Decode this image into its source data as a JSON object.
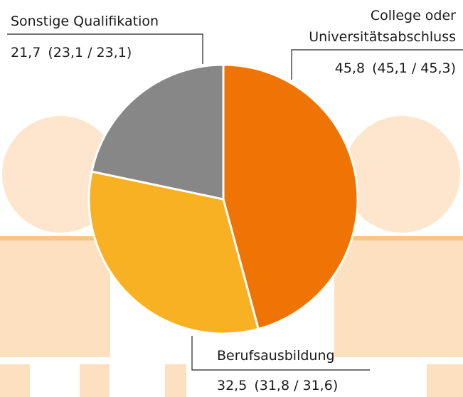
{
  "chart_data": {
    "type": "pie",
    "categories": [
      "College oder Universitätsabschluss",
      "Berufsausbildung",
      "Sonstige Qualifikation"
    ],
    "category_lines": [
      [
        "College oder",
        "Universitätsabschluss"
      ],
      [
        "Berufsausbildung"
      ],
      [
        "Sonstige Qualifikation"
      ]
    ],
    "values": [
      45.8,
      32.5,
      21.7
    ],
    "value_labels": [
      "45,8",
      "32,5",
      "21,7"
    ],
    "comparisons": [
      "(45,1 / 45,3)",
      "(31,8 / 31,6)",
      "(23,1 / 23,1)"
    ],
    "colors": [
      "#ef7404",
      "#f8b122",
      "#878787"
    ]
  }
}
